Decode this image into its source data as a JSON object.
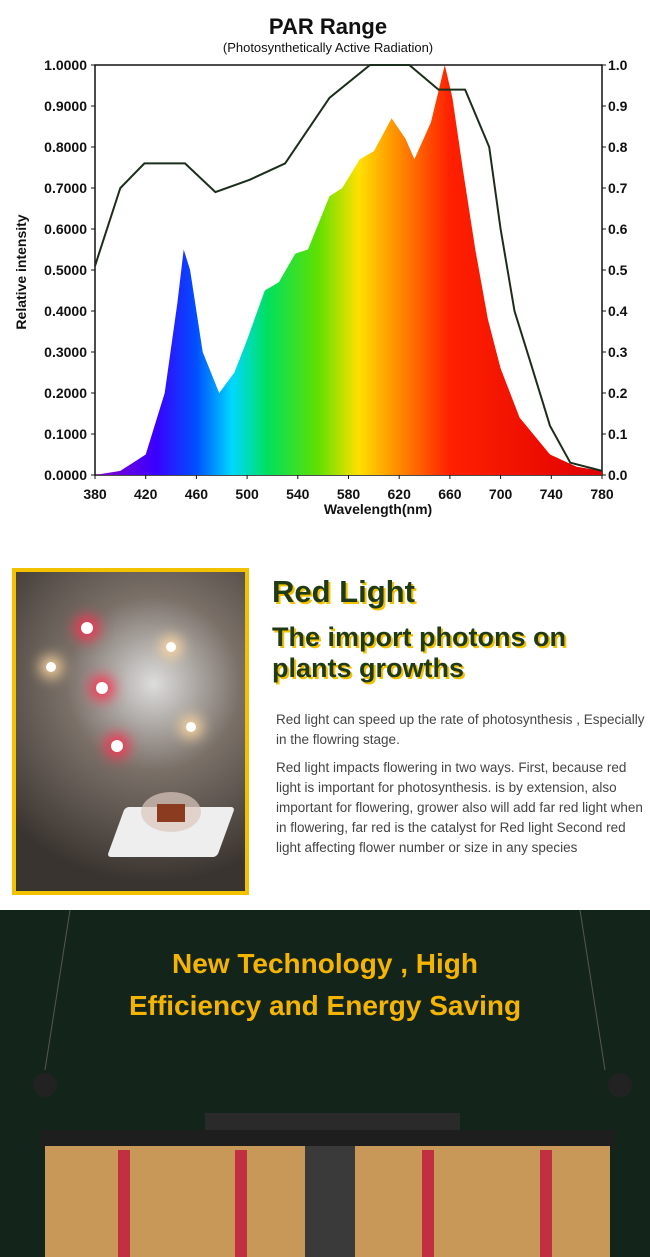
{
  "chart_data": {
    "type": "area",
    "title": "PAR Range",
    "subtitle": "(Photosynthetically Active Radiation)",
    "x_label": "Wavelength(nm)",
    "y_label": "Relative intensity",
    "xlim": [
      380,
      780
    ],
    "xticks": [
      380,
      420,
      460,
      500,
      540,
      580,
      620,
      660,
      700,
      740,
      780
    ],
    "ylim": [
      0,
      1
    ],
    "yticks": [
      {
        "value": 0,
        "label": "0.0000"
      },
      {
        "value": 0.1,
        "label": "0.1000"
      },
      {
        "value": 0.2,
        "label": "0.2000"
      },
      {
        "value": 0.3,
        "label": "0.3000"
      },
      {
        "value": 0.4,
        "label": "0.4000"
      },
      {
        "value": 0.5,
        "label": "0.5000"
      },
      {
        "value": 0.6,
        "label": "0.6000"
      },
      {
        "value": 0.7,
        "label": "0.7000"
      },
      {
        "value": 0.8,
        "label": "0.8000"
      },
      {
        "value": 0.9,
        "label": "0.9000"
      },
      {
        "value": 1,
        "label": "1.0000"
      }
    ],
    "y2lim": [
      0,
      1
    ],
    "y2ticks": [
      {
        "value": 0,
        "label": "0.0"
      },
      0.1,
      0.2,
      0.3,
      0.4,
      0.5,
      0.6,
      0.7,
      0.8,
      0.9,
      {
        "value": 1,
        "label": "1.0"
      }
    ],
    "series": [
      {
        "x": [
          380,
          400,
          420,
          435,
          445,
          450,
          455,
          465,
          478,
          490,
          500,
          514,
          525,
          538,
          548,
          565,
          575,
          589,
          600,
          614,
          625,
          632,
          645,
          656,
          662,
          670,
          680,
          690,
          700,
          715,
          739,
          760,
          780
        ],
        "values": [
          0,
          0.01,
          0.05,
          0.2,
          0.42,
          0.55,
          0.5,
          0.3,
          0.2,
          0.25,
          0.33,
          0.45,
          0.47,
          0.54,
          0.55,
          0.68,
          0.7,
          0.77,
          0.79,
          0.87,
          0.82,
          0.77,
          0.86,
          1.0,
          0.92,
          0.75,
          0.55,
          0.38,
          0.26,
          0.14,
          0.05,
          0.02,
          0.01
        ]
      },
      {
        "x": [
          380,
          400,
          419,
          451,
          475,
          502,
          530,
          565,
          597,
          628,
          651,
          672,
          691,
          700,
          711,
          723,
          739,
          755,
          780
        ],
        "values": [
          0.51,
          0.7,
          0.76,
          0.76,
          0.69,
          0.72,
          0.76,
          0.92,
          1.0,
          1.0,
          0.94,
          0.94,
          0.8,
          0.6,
          0.4,
          0.28,
          0.12,
          0.03,
          0.01
        ],
        "axis": "y2",
        "color": "#1b2d1b"
      }
    ]
  },
  "section": {
    "title": "Red Light",
    "subtitle": "The import photons on plants growths",
    "paragraphs": [
      "Red light can speed up the rate of photosynthesis , Especially in the flowring stage.",
      "Red light impacts flowering in two ways. First, because red light is important for photosynthesis. is by extension, also important for flowering, grower also will add far red light when in flowering, far red is the catalyst for Red light  Second red light affecting flower number or size in any species"
    ]
  },
  "banner": {
    "lines": [
      "New Technology , High",
      "Efficiency and Energy Saving"
    ]
  }
}
